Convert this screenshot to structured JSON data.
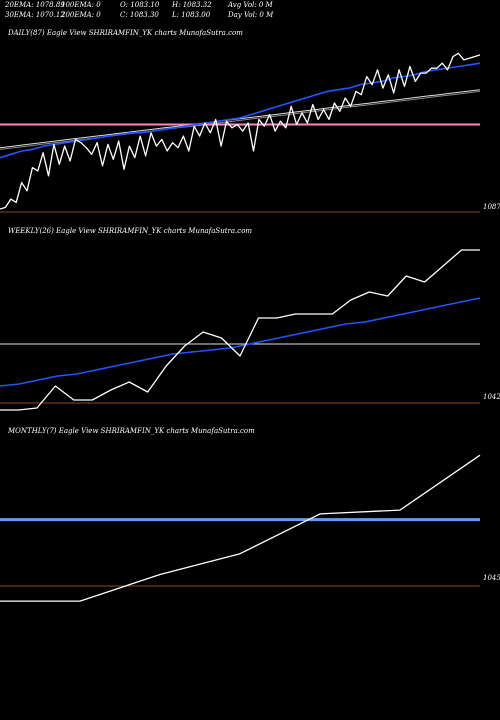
{
  "header": {
    "row1": [
      {
        "label": "20EMA: 1078.89"
      },
      {
        "label": "100EMA: 0"
      },
      {
        "label": "O: 1083.10"
      },
      {
        "label": "H: 1083.32"
      },
      {
        "label": "Avg Vol: 0  M"
      }
    ],
    "row2": [
      {
        "label": "30EMA: 1070.12"
      },
      {
        "label": "200EMA: 0"
      },
      {
        "label": "C: 1083.30"
      },
      {
        "label": "L: 1083.00"
      },
      {
        "label": "Day Vol: 0  M"
      }
    ]
  },
  "colors": {
    "background": "#000000",
    "price_line": "#ffffff",
    "ema_fast": "#2255ff",
    "ema_slow": "#dddddd",
    "support": "#ff88c0",
    "divider": "#8a4a1a",
    "monthly_support": "#6699ff"
  },
  "chart_data": [
    {
      "type": "line",
      "label": "DAILY(87) Eagle  View  SHRIRAMFIN_YK charts MunafaSutra.com",
      "price_label": "1087",
      "series": [
        {
          "values": [
            998,
            999,
            1004,
            1002,
            1014,
            1009,
            1023,
            1021,
            1032,
            1018,
            1037,
            1025,
            1036,
            1027,
            1040,
            1038,
            1035,
            1031,
            1038,
            1024,
            1037,
            1028,
            1039,
            1022,
            1036,
            1029,
            1042,
            1030,
            1044,
            1036,
            1040,
            1033,
            1038,
            1035,
            1042,
            1033,
            1048,
            1042,
            1050,
            1044,
            1052,
            1036,
            1051,
            1047,
            1049,
            1045,
            1050,
            1033,
            1052,
            1048,
            1055,
            1045,
            1051,
            1047,
            1060,
            1049,
            1056,
            1050,
            1061,
            1052,
            1058,
            1052,
            1062,
            1057,
            1065,
            1060,
            1069,
            1067,
            1078,
            1073,
            1082,
            1071,
            1079,
            1068,
            1082,
            1072,
            1084,
            1075,
            1080,
            1080,
            1083,
            1083,
            1086,
            1082,
            1090,
            1092,
            1088,
            1089,
            1090,
            1091
          ]
        },
        {
          "values": [
            1029,
            1031,
            1033,
            1034,
            1036,
            1037,
            1038,
            1039,
            1040,
            1041,
            1042,
            1043,
            1044,
            1044,
            1045,
            1046,
            1047,
            1048,
            1049,
            1050,
            1051,
            1052,
            1053,
            1055,
            1057,
            1059,
            1061,
            1063,
            1065,
            1067,
            1069,
            1070,
            1071,
            1073,
            1074,
            1075,
            1077,
            1078,
            1079,
            1081,
            1082,
            1083,
            1084,
            1085,
            1086
          ]
        },
        {
          "values": [
            1035,
            1036,
            1037,
            1038,
            1039,
            1040,
            1041,
            1042,
            1043,
            1044,
            1045,
            1046,
            1047,
            1048,
            1049,
            1050,
            1051,
            1052,
            1053,
            1054,
            1055,
            1056,
            1057,
            1058,
            1059,
            1060,
            1061,
            1062,
            1063,
            1064,
            1065,
            1066,
            1067,
            1068,
            1069,
            1070
          ]
        },
        {
          "values": [
            1034,
            1035,
            1036,
            1037,
            1038,
            1039,
            1040,
            1041,
            1042,
            1043,
            1044,
            1045,
            1046,
            1047,
            1048,
            1049,
            1050,
            1051,
            1052,
            1053,
            1054,
            1055,
            1056,
            1057,
            1058,
            1059,
            1060,
            1061,
            1062,
            1063,
            1064,
            1065,
            1066,
            1067,
            1068,
            1069
          ]
        },
        {
          "values": [
            1049,
            1049
          ]
        }
      ],
      "ylim": [
        995,
        1100
      ]
    },
    {
      "type": "line",
      "label": "WEEKLY(26) Eagle  View  SHRIRAMFIN_YK charts MunafaSutra.com",
      "price_label": "1042",
      "series": [
        {
          "values": [
            1040,
            1040,
            1041,
            1052,
            1045,
            1045,
            1050,
            1054,
            1049,
            1062,
            1072,
            1079,
            1076,
            1067,
            1086,
            1086,
            1088,
            1088,
            1088,
            1095,
            1099,
            1097,
            1107,
            1104,
            1112,
            1120,
            1120
          ]
        },
        {
          "values": [
            1052,
            1053,
            1055,
            1057,
            1058,
            1060,
            1062,
            1064,
            1066,
            1068,
            1069,
            1070,
            1071,
            1073,
            1075,
            1077,
            1079,
            1081,
            1083,
            1084,
            1086,
            1088,
            1090,
            1092,
            1094,
            1096
          ]
        },
        {
          "values": [
            1073,
            1073
          ]
        }
      ],
      "ylim": [
        1035,
        1125
      ]
    },
    {
      "type": "line",
      "label": "MONTHLY(7) Eagle  View  SHRIRAMFIN_YK charts MunafaSutra.com",
      "price_label": "1045",
      "series": [
        {
          "values": [
            1030,
            1030,
            1044,
            1055,
            1076,
            1078,
            1107
          ]
        },
        {
          "values": [
            1073,
            1073
          ]
        }
      ],
      "ylim": [
        1020,
        1115
      ]
    }
  ]
}
